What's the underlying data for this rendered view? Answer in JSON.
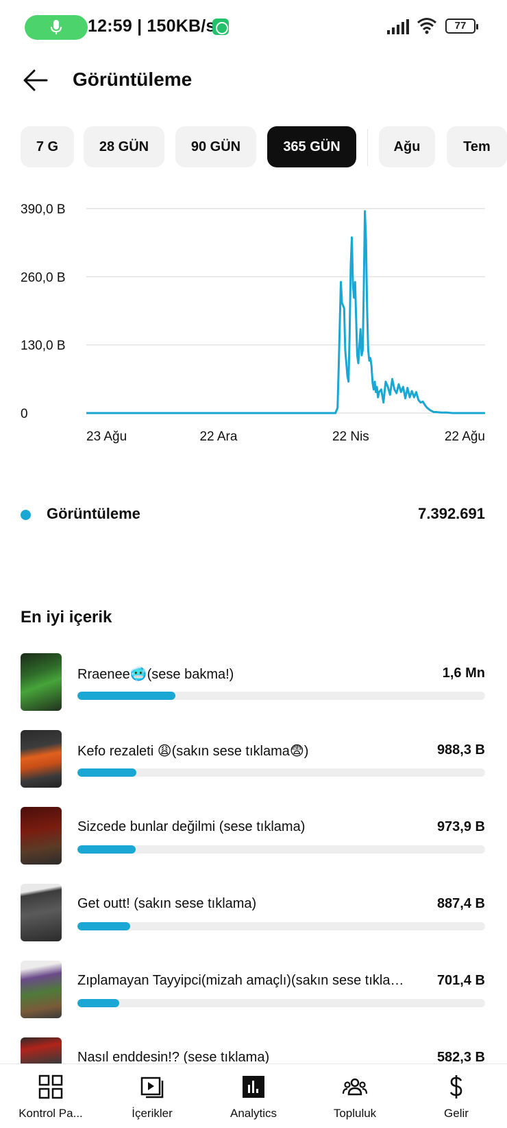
{
  "status_bar": {
    "time_speed": "12:59 | 150KB/s",
    "battery": "77"
  },
  "header": {
    "title": "Görüntüleme",
    "back_icon": "arrow-left-icon"
  },
  "chips": [
    {
      "label": "7 G",
      "active": false
    },
    {
      "label": "28 GÜN",
      "active": false
    },
    {
      "label": "90 GÜN",
      "active": false
    },
    {
      "label": "365 GÜN",
      "active": true
    },
    {
      "label": "Ağu",
      "active": false
    },
    {
      "label": "Tem",
      "active": false
    }
  ],
  "chart_data": {
    "type": "line",
    "y_ticks": [
      "390,0 B",
      "260,0 B",
      "130,0 B",
      "0"
    ],
    "y_tick_values": [
      390,
      260,
      130,
      0
    ],
    "ylim": [
      0,
      390
    ],
    "x_ticks": [
      "23 Ağu",
      "22 Ara",
      "22 Nis",
      "22 Ağu"
    ],
    "x_range_days": [
      0,
      365
    ],
    "x_tick_days": [
      0,
      121,
      242,
      365
    ],
    "grid": true,
    "color": "#1aa7d3",
    "series": [
      {
        "name": "Görüntüleme",
        "x": [
          0,
          100,
          200,
          228,
          230,
          231,
          233,
          234,
          236,
          237,
          239,
          240,
          241,
          242,
          243,
          244,
          245,
          246,
          247,
          248,
          249,
          250,
          251,
          252,
          253,
          254,
          255,
          256,
          257,
          258,
          259,
          260,
          261,
          262,
          263,
          264,
          265,
          266,
          267,
          268,
          270,
          272,
          274,
          276,
          278,
          280,
          282,
          284,
          286,
          288,
          290,
          292,
          294,
          296,
          298,
          300,
          302,
          304,
          306,
          308,
          310,
          312,
          315,
          318,
          320,
          325,
          330,
          335,
          340,
          350,
          365
        ],
        "y": [
          0,
          0,
          0,
          0,
          10,
          85,
          250,
          210,
          200,
          120,
          70,
          60,
          150,
          280,
          335,
          245,
          220,
          250,
          180,
          110,
          95,
          130,
          160,
          110,
          120,
          240,
          385,
          330,
          200,
          120,
          100,
          105,
          90,
          58,
          45,
          60,
          40,
          50,
          30,
          40,
          45,
          20,
          60,
          50,
          35,
          65,
          45,
          38,
          55,
          40,
          50,
          28,
          48,
          30,
          42,
          30,
          40,
          25,
          20,
          22,
          15,
          10,
          5,
          2,
          2,
          1,
          1,
          0,
          0,
          0,
          0
        ]
      }
    ]
  },
  "total": {
    "label": "Görüntüleme",
    "value": "7.392.691",
    "color": "#1aa7d3"
  },
  "top_content": {
    "title": "En iyi içerik",
    "items": [
      {
        "title": "Rraenee🥶(sese bakma!)",
        "value": "1,6 Mn",
        "share": 0.24
      },
      {
        "title": "Kefo rezaleti 😩(sakın sese tıklama😨)",
        "value": "988,3 B",
        "share": 0.145
      },
      {
        "title": "Sizcede bunlar değilmi (sese tıklama)",
        "value": "973,9 B",
        "share": 0.143
      },
      {
        "title": "Get outt! (sakın sese tıklama)",
        "value": "887,4 B",
        "share": 0.13
      },
      {
        "title": "Zıplamayan Tayyipci(mizah amaçlı)(sakın sese tıklama)",
        "value": "701,4 B",
        "share": 0.103
      },
      {
        "title": "Nasıl enddesin!? (sese tıklama)",
        "value": "582,3 B",
        "share": 0.085
      }
    ]
  },
  "bottom_nav": [
    {
      "label": "Kontrol Pa...",
      "icon": "dashboard-icon"
    },
    {
      "label": "İçerikler",
      "icon": "content-icon"
    },
    {
      "label": "Analytics",
      "icon": "analytics-icon"
    },
    {
      "label": "Topluluk",
      "icon": "community-icon"
    },
    {
      "label": "Gelir",
      "icon": "dollar-icon"
    }
  ]
}
